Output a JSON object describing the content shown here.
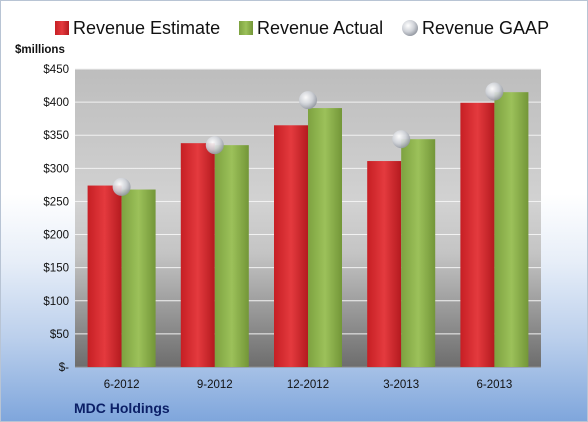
{
  "chart_data": {
    "type": "bar",
    "categories": [
      "6-2012",
      "9-2012",
      "12-2012",
      "3-2013",
      "6-2013"
    ],
    "series": [
      {
        "name": "Revenue Estimate",
        "kind": "bar",
        "color": "#d42a2f",
        "values": [
          274,
          338,
          365,
          311,
          399
        ]
      },
      {
        "name": "Revenue Actual",
        "kind": "bar",
        "color": "#8bb04a",
        "values": [
          268,
          335,
          391,
          344,
          415
        ]
      },
      {
        "name": "Revenue GAAP",
        "kind": "marker",
        "color": "#c9ccd4",
        "values": [
          272,
          335,
          403,
          344,
          416
        ]
      }
    ],
    "ylabel": "$millions",
    "ylim": [
      0,
      450
    ],
    "yticks": [
      0,
      50,
      100,
      150,
      200,
      250,
      300,
      350,
      400,
      450
    ],
    "ytick_labels": [
      "$-",
      "$50",
      "$100",
      "$150",
      "$200",
      "$250",
      "$300",
      "$350",
      "$400",
      "$450"
    ],
    "grid": true,
    "legend": "top",
    "company": "MDC Holdings"
  }
}
